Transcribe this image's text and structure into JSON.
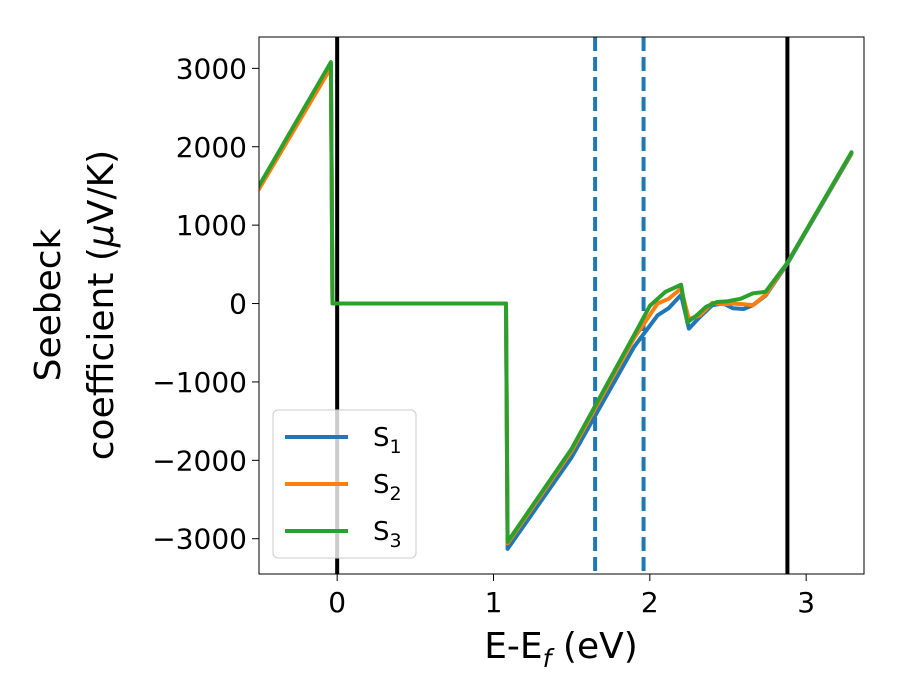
{
  "chart_data": {
    "type": "line",
    "xlabel": {
      "main": "E-E",
      "sub": "f",
      "unit": " (eV)"
    },
    "ylabel": {
      "line1": "Seebeck",
      "line2_main": "coefficient  (",
      "line2_mu": "μ",
      "line2_unit": "V/K)"
    },
    "xlim": [
      -0.5,
      3.37
    ],
    "ylim": [
      -3450,
      3400
    ],
    "xticks": [
      0,
      1,
      2,
      3
    ],
    "xtick_labels": [
      "0",
      "1",
      "2",
      "3"
    ],
    "yticks": [
      3000,
      2000,
      1000,
      0,
      -1000,
      -2000,
      -3000
    ],
    "ytick_labels": [
      "3000",
      "2000",
      "1000",
      "0",
      "−1000",
      "−2000",
      "−3000"
    ],
    "legend": {
      "placement": "lower-left",
      "entries": [
        {
          "main": "S",
          "sub": "1",
          "color": "#1f77b4"
        },
        {
          "main": "S",
          "sub": "2",
          "color": "#ff7f0e"
        },
        {
          "main": "S",
          "sub": "3",
          "color": "#2ca02c"
        }
      ]
    },
    "vlines": [
      {
        "x": 0.0,
        "style": "solid",
        "color": "#000000"
      },
      {
        "x": 2.88,
        "style": "solid",
        "color": "#000000"
      },
      {
        "x": 1.65,
        "style": "dashed",
        "color": "#1f77b4"
      },
      {
        "x": 1.96,
        "style": "dashed",
        "color": "#1f77b4"
      }
    ],
    "series": [
      {
        "name": "S1",
        "color": "#1f77b4",
        "points": [
          [
            -0.5,
            1480
          ],
          [
            -0.04,
            3050
          ],
          [
            -0.03,
            0
          ],
          [
            1.08,
            0
          ],
          [
            1.09,
            -3130
          ],
          [
            1.5,
            -1960
          ],
          [
            1.9,
            -550
          ],
          [
            2.05,
            -150
          ],
          [
            2.12,
            -60
          ],
          [
            2.2,
            110
          ],
          [
            2.25,
            -320
          ],
          [
            2.32,
            -170
          ],
          [
            2.4,
            -20
          ],
          [
            2.47,
            0
          ],
          [
            2.53,
            -60
          ],
          [
            2.6,
            -70
          ],
          [
            2.66,
            -20
          ],
          [
            2.74,
            100
          ],
          [
            2.88,
            510
          ],
          [
            3.29,
            1910
          ]
        ]
      },
      {
        "name": "S2",
        "color": "#ff7f0e",
        "points": [
          [
            -0.5,
            1460
          ],
          [
            -0.04,
            3010
          ],
          [
            -0.03,
            0
          ],
          [
            1.08,
            0
          ],
          [
            1.09,
            -3060
          ],
          [
            1.5,
            -1880
          ],
          [
            1.9,
            -440
          ],
          [
            2.05,
            0
          ],
          [
            2.12,
            60
          ],
          [
            2.2,
            190
          ],
          [
            2.25,
            -200
          ],
          [
            2.32,
            -150
          ],
          [
            2.4,
            10
          ],
          [
            2.47,
            -10
          ],
          [
            2.53,
            0
          ],
          [
            2.6,
            -10
          ],
          [
            2.66,
            -20
          ],
          [
            2.74,
            110
          ],
          [
            2.88,
            520
          ],
          [
            3.29,
            1920
          ]
        ]
      },
      {
        "name": "S3",
        "color": "#2ca02c",
        "points": [
          [
            -0.5,
            1500
          ],
          [
            -0.04,
            3080
          ],
          [
            -0.03,
            0
          ],
          [
            1.08,
            0
          ],
          [
            1.09,
            -3040
          ],
          [
            1.5,
            -1850
          ],
          [
            1.9,
            -400
          ],
          [
            2.0,
            -30
          ],
          [
            2.1,
            150
          ],
          [
            2.2,
            240
          ],
          [
            2.24,
            -240
          ],
          [
            2.3,
            -150
          ],
          [
            2.36,
            -40
          ],
          [
            2.43,
            20
          ],
          [
            2.5,
            30
          ],
          [
            2.58,
            60
          ],
          [
            2.66,
            130
          ],
          [
            2.74,
            150
          ],
          [
            2.88,
            520
          ],
          [
            3.29,
            1930
          ]
        ]
      }
    ]
  }
}
